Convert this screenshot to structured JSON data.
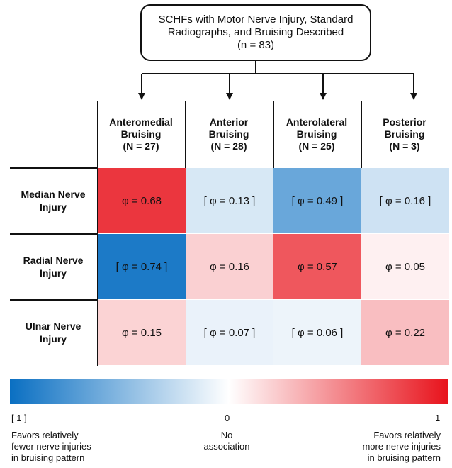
{
  "flow": {
    "box_lines": [
      "SCHFs with Motor Nerve Injury, Standard",
      "Radiographs, and Bruising Described",
      "(n = 83)"
    ]
  },
  "columns": [
    {
      "lines": [
        "Anteromedial",
        "Bruising",
        "(N = 27)"
      ]
    },
    {
      "lines": [
        "Anterior",
        "Bruising",
        "(N = 28)"
      ]
    },
    {
      "lines": [
        "Anterolateral",
        "Bruising",
        "(N = 25)"
      ]
    },
    {
      "lines": [
        "Posterior",
        "Bruising",
        "(N = 3)"
      ]
    }
  ],
  "rows": [
    {
      "lines": [
        "Median Nerve",
        "Injury"
      ]
    },
    {
      "lines": [
        "Radial Nerve",
        "Injury"
      ]
    },
    {
      "lines": [
        "Ulnar Nerve",
        "Injury"
      ]
    }
  ],
  "cells": [
    [
      {
        "label": "φ = 0.68",
        "phi": 0.68
      },
      {
        "label": "[ φ = 0.13 ]",
        "phi": -0.13
      },
      {
        "label": "[ φ = 0.49 ]",
        "phi": -0.49
      },
      {
        "label": "[ φ = 0.16 ]",
        "phi": -0.16
      }
    ],
    [
      {
        "label": "[ φ = 0.74 ]",
        "phi": -0.74
      },
      {
        "label": "φ = 0.16",
        "phi": 0.16
      },
      {
        "label": "φ = 0.57",
        "phi": 0.57
      },
      {
        "label": "φ = 0.05",
        "phi": 0.05
      }
    ],
    [
      {
        "label": "φ = 0.15",
        "phi": 0.15
      },
      {
        "label": "[ φ = 0.07 ]",
        "phi": -0.07
      },
      {
        "label": "[ φ = 0.06 ]",
        "phi": -0.06
      },
      {
        "label": "φ = 0.22",
        "phi": 0.22
      }
    ]
  ],
  "legend": {
    "colors": {
      "negative": "#0a6fc2",
      "neutral": "#ffffff",
      "positive": "#e8131c"
    },
    "tick_left": "[ 1 ]",
    "tick_mid": "0",
    "tick_right": "1",
    "left_lines": [
      "Favors relatively",
      "fewer nerve injuries",
      "in bruising pattern"
    ],
    "mid_lines": [
      "No",
      "association"
    ],
    "right_lines": [
      "Favors relatively",
      "more nerve injuries",
      "in bruising pattern"
    ]
  }
}
